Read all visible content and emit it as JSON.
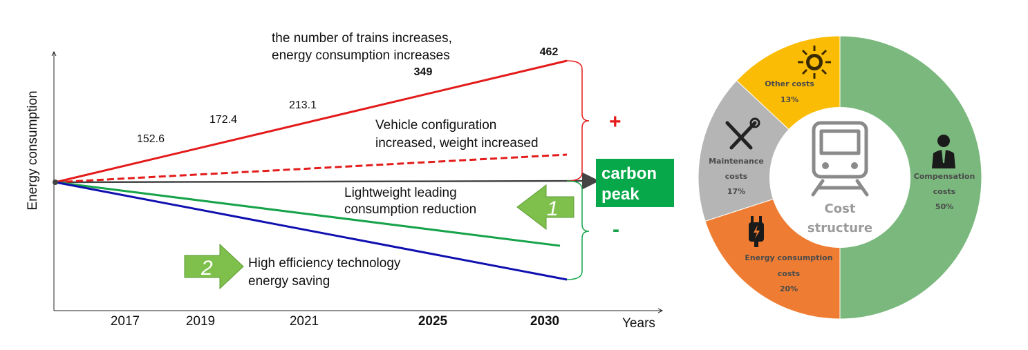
{
  "colors": {
    "red": "#e31b1b",
    "green": "#16a34a",
    "blue": "#1010b0",
    "axis": "#444444",
    "badge": "#06a84a",
    "arrow_green": "#7ec04b",
    "compensation": "#7ab87d",
    "energy": "#ee7d33",
    "maintenance": "#b5b5b5",
    "other": "#fbbc05"
  },
  "chart_data": [
    {
      "type": "line",
      "ylabel": "Energy consumption",
      "xlabel": "Years",
      "x_ticks": [
        "2017",
        "2019",
        "2021",
        "2025",
        "2030"
      ],
      "x_ticks_bold": [
        "2025",
        "2030"
      ],
      "data_labels": [
        {
          "year": "2017",
          "value": "152.6"
        },
        {
          "year": "2019",
          "value": "172.4"
        },
        {
          "year": "2021",
          "value": "213.1"
        },
        {
          "year": "2025",
          "value": "349"
        },
        {
          "year": "2030",
          "value": "462"
        }
      ],
      "annotations": {
        "trains_line1": "the number of trains increases,",
        "trains_line2": "energy consumption increases",
        "vehicle_line1": "Vehicle configuration",
        "vehicle_line2": "increased, weight increased",
        "light_line1": "Lightweight leading",
        "light_line2": "consumption reduction",
        "eff_line1": "High efficiency technology",
        "eff_line2": "energy saving",
        "plus": "+",
        "minus": "-",
        "badge_line1": "carbon",
        "badge_line2": "peak",
        "arrow1": "1",
        "arrow2": "2"
      }
    },
    {
      "type": "pie",
      "center_line1": "Cost",
      "center_line2": "structure",
      "icon_names": [
        "sun-icon",
        "tools-icon",
        "train-icon",
        "person-icon",
        "plug-icon"
      ],
      "slices": [
        {
          "key": "compensation",
          "label_line1": "Compensation",
          "label_line2": "costs",
          "pct_text": "50%",
          "value": 50
        },
        {
          "key": "energy",
          "label_line1": "Energy consumption",
          "label_line2": "costs",
          "pct_text": "20%",
          "value": 20
        },
        {
          "key": "maintenance",
          "label_line1": "Maintenance",
          "label_line2": "costs",
          "pct_text": "17%",
          "value": 17
        },
        {
          "key": "other",
          "label_line1": "Other costs",
          "label_line2": "",
          "pct_text": "13%",
          "value": 13
        }
      ]
    }
  ]
}
